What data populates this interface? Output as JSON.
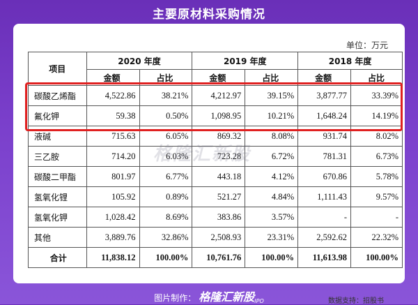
{
  "title": "主要原材料采购情况",
  "unit": "单位：万元",
  "table": {
    "item_header": "项目",
    "years": [
      "2020 年度",
      "2019 年度",
      "2018 年度"
    ],
    "amount_label": "金额",
    "ratio_label": "占比",
    "rows": [
      {
        "item": "碳酸乙烯酯",
        "v": [
          "4,522.86",
          "38.21%",
          "4,212.97",
          "39.15%",
          "3,877.77",
          "33.39%"
        ]
      },
      {
        "item": "氟化钾",
        "v": [
          "59.38",
          "0.50%",
          "1,098.95",
          "10.21%",
          "1,648.24",
          "14.19%"
        ]
      },
      {
        "item": "液碱",
        "v": [
          "715.63",
          "6.05%",
          "869.32",
          "8.08%",
          "931.74",
          "8.02%"
        ]
      },
      {
        "item": "三乙胺",
        "v": [
          "714.20",
          "6.03%",
          "723.28",
          "6.72%",
          "781.31",
          "6.73%"
        ]
      },
      {
        "item": "碳酸二甲酯",
        "v": [
          "801.97",
          "6.77%",
          "443.18",
          "4.12%",
          "670.86",
          "5.78%"
        ]
      },
      {
        "item": "氢氧化锂",
        "v": [
          "105.92",
          "0.89%",
          "521.27",
          "4.84%",
          "1,111.43",
          "9.57%"
        ]
      },
      {
        "item": "氢氧化钾",
        "v": [
          "1,028.42",
          "8.69%",
          "383.86",
          "3.57%",
          "-",
          "-"
        ]
      },
      {
        "item": "其他",
        "v": [
          "3,889.76",
          "32.86%",
          "2,508.93",
          "23.31%",
          "2,592.62",
          "22.32%"
        ]
      }
    ],
    "total": {
      "item": "合计",
      "v": [
        "11,838.12",
        "100.00%",
        "10,761.76",
        "100.00%",
        "11,613.98",
        "100.00%"
      ]
    }
  },
  "watermark": "格隆汇新股",
  "source": "数据支持：招股书",
  "footer": {
    "prefix": "图片制作：",
    "brand": "格隆汇新股",
    "ipo": "IPO"
  },
  "colors": {
    "background": "#6a2fb8",
    "highlight": "#e02020"
  }
}
